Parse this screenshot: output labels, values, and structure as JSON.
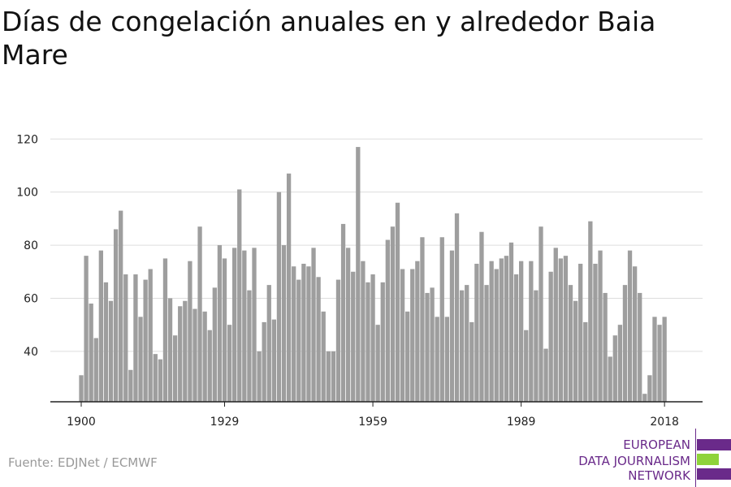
{
  "title": "Días de congelación anuales en y alrededor Baia Mare",
  "source": "Fuente: EDJNet / ECMWF",
  "logo": {
    "line1": "EUROPEAN",
    "line2": "DATA JOURNALISM",
    "line3": "NETWORK",
    "colors": [
      "#6a2a8a",
      "#8fd33a",
      "#6a2a8a"
    ]
  },
  "colors": {
    "bar": "#9e9e9e",
    "grid": "#dddddd",
    "axis": "#222222"
  },
  "chart_data": {
    "type": "bar",
    "title": "Días de congelación anuales en y alrededor Baia Mare",
    "xlabel": "",
    "ylabel": "",
    "x_start": 1900,
    "x_ticks": [
      1900,
      1929,
      1959,
      1989,
      2018
    ],
    "y_ticks": [
      40,
      60,
      80,
      100,
      120
    ],
    "ylim": [
      21,
      120
    ],
    "grid": true,
    "values": [
      31,
      76,
      58,
      45,
      78,
      66,
      59,
      86,
      93,
      69,
      33,
      69,
      53,
      67,
      71,
      39,
      37,
      75,
      60,
      46,
      57,
      59,
      74,
      56,
      87,
      55,
      48,
      64,
      80,
      75,
      50,
      79,
      101,
      78,
      63,
      79,
      40,
      51,
      65,
      52,
      100,
      80,
      107,
      72,
      67,
      73,
      72,
      79,
      68,
      55,
      40,
      40,
      67,
      88,
      79,
      70,
      117,
      74,
      66,
      69,
      50,
      66,
      82,
      87,
      96,
      71,
      55,
      71,
      74,
      83,
      62,
      64,
      53,
      83,
      53,
      78,
      92,
      63,
      65,
      51,
      73,
      85,
      65,
      74,
      71,
      75,
      76,
      81,
      69,
      74,
      48,
      74,
      63,
      87,
      41,
      70,
      79,
      75,
      76,
      65,
      59,
      73,
      51,
      89,
      73,
      78,
      62,
      38,
      46,
      50,
      65,
      78,
      72,
      62,
      24,
      31,
      53,
      50,
      53
    ]
  }
}
